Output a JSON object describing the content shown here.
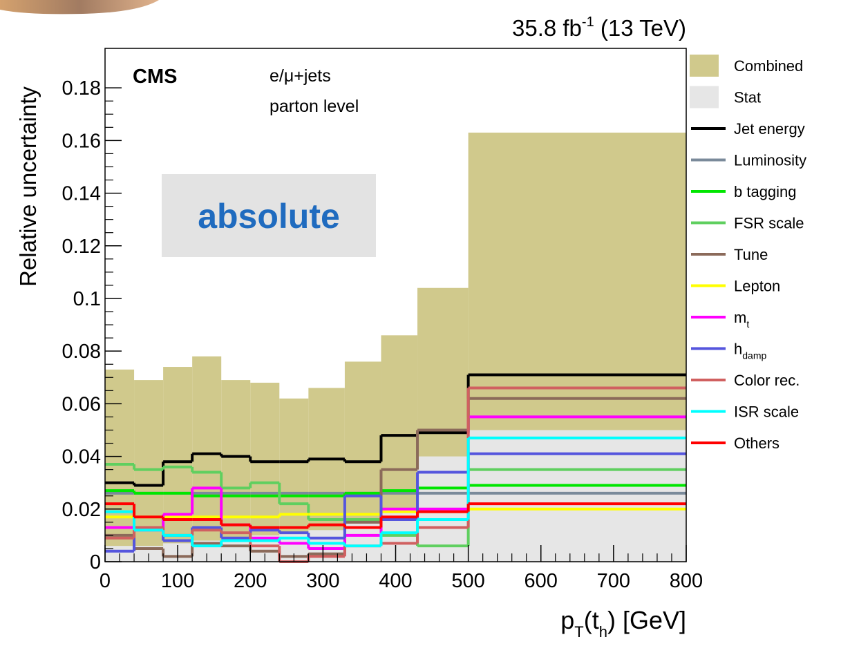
{
  "chart_data": {
    "type": "histogram",
    "lumi_label": {
      "text": "35.8 fb",
      "sup": "-1",
      "suffix": " (13 TeV)"
    },
    "experiment": "CMS",
    "annotations": [
      "e/μ+jets",
      "parton level"
    ],
    "badge": "absolute",
    "y_label": "Relative uncertainty",
    "x_label": {
      "parts": [
        "p",
        "T",
        "(t",
        "h",
        ") [GeV]"
      ]
    },
    "bins": [
      0,
      40,
      80,
      120,
      160,
      200,
      240,
      280,
      330,
      380,
      430,
      500,
      800
    ],
    "xlim": [
      0,
      800
    ],
    "xticks": [
      0,
      100,
      200,
      300,
      400,
      500,
      600,
      700,
      800
    ],
    "ylim": [
      0,
      0.195
    ],
    "yticks": [
      0,
      0.02,
      0.04,
      0.06,
      0.08,
      0.1,
      0.12,
      0.14,
      0.16,
      0.18
    ],
    "series": [
      {
        "name": "Combined",
        "style": "fill",
        "color": "#d0c98c",
        "values": [
          0.073,
          0.069,
          0.074,
          0.078,
          0.069,
          0.068,
          0.062,
          0.066,
          0.076,
          0.086,
          0.104,
          0.163
        ]
      },
      {
        "name": "Stat",
        "style": "fill",
        "color": "#e6e6e6",
        "values": [
          0.006,
          0.006,
          0.007,
          0.008,
          0.009,
          0.01,
          0.011,
          0.012,
          0.016,
          0.02,
          0.04,
          0.05
        ]
      },
      {
        "name": "Jet energy",
        "style": "line",
        "color": "#000000",
        "values": [
          0.03,
          0.029,
          0.038,
          0.041,
          0.04,
          0.038,
          0.038,
          0.039,
          0.038,
          0.048,
          0.049,
          0.071
        ]
      },
      {
        "name": "Luminosity",
        "style": "line",
        "color": "#7a8a9a",
        "values": [
          0.026,
          0.026,
          0.026,
          0.026,
          0.026,
          0.026,
          0.026,
          0.026,
          0.026,
          0.026,
          0.026,
          0.026
        ]
      },
      {
        "name": "b tagging",
        "style": "line",
        "color": "#00e600",
        "values": [
          0.027,
          0.026,
          0.026,
          0.025,
          0.025,
          0.025,
          0.025,
          0.025,
          0.026,
          0.027,
          0.028,
          0.029
        ]
      },
      {
        "name": "FSR scale",
        "style": "line",
        "color": "#5fcf5f",
        "values": [
          0.037,
          0.035,
          0.036,
          0.034,
          0.028,
          0.03,
          0.022,
          0.016,
          0.016,
          0.01,
          0.006,
          0.035
        ]
      },
      {
        "name": "Tune",
        "style": "line",
        "color": "#8b6a5a",
        "values": [
          0.01,
          0.005,
          0.002,
          0.007,
          0.006,
          0.004,
          0.002,
          0.003,
          0.015,
          0.035,
          0.05,
          0.062
        ]
      },
      {
        "name": "Lepton",
        "style": "line",
        "color": "#ffff00",
        "values": [
          0.017,
          0.017,
          0.017,
          0.017,
          0.017,
          0.017,
          0.018,
          0.018,
          0.018,
          0.019,
          0.019,
          0.02
        ]
      },
      {
        "name": "m",
        "sub": "t",
        "style": "line",
        "color": "#ff00ff",
        "values": [
          0.013,
          0.012,
          0.018,
          0.028,
          0.014,
          0.009,
          0.007,
          0.005,
          0.01,
          0.02,
          0.02,
          0.055
        ]
      },
      {
        "name": "h",
        "sub": "damp",
        "style": "line",
        "color": "#5555dd",
        "values": [
          0.004,
          0.013,
          0.008,
          0.013,
          0.009,
          0.012,
          0.011,
          0.009,
          0.025,
          0.016,
          0.034,
          0.041
        ]
      },
      {
        "name": "Color rec.",
        "style": "line",
        "color": "#d06060",
        "values": [
          0.009,
          0.013,
          0.01,
          0.012,
          0.011,
          0.006,
          0.0,
          0.002,
          0.006,
          0.007,
          0.013,
          0.066
        ]
      },
      {
        "name": "ISR scale",
        "style": "line",
        "color": "#00ffff",
        "values": [
          0.019,
          0.012,
          0.01,
          0.006,
          0.008,
          0.008,
          0.009,
          0.007,
          0.006,
          0.011,
          0.016,
          0.047
        ]
      },
      {
        "name": "Others",
        "style": "line",
        "color": "#ff0000",
        "values": [
          0.022,
          0.017,
          0.016,
          0.016,
          0.014,
          0.013,
          0.013,
          0.014,
          0.013,
          0.017,
          0.019,
          0.022
        ]
      }
    ]
  }
}
